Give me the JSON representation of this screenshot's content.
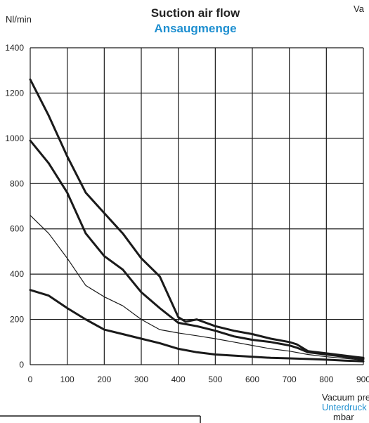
{
  "colors": {
    "ink": "#1a1a1a",
    "accent": "#1e8fd0",
    "grid": "#1a1a1a"
  },
  "chart_data": {
    "type": "line",
    "title": "Suction air flow",
    "subtitle": "Ansaugmenge",
    "ylabel": "Nl/min",
    "xlabel": "Vacuum pressure",
    "xlabel_de": "Unterdruck",
    "xunit": "mbar",
    "corner_label": "Va",
    "xlim": [
      0,
      900
    ],
    "ylim": [
      0,
      1400
    ],
    "x_ticks": [
      0,
      100,
      200,
      300,
      400,
      500,
      600,
      700,
      800,
      900
    ],
    "y_ticks": [
      0,
      200,
      400,
      600,
      800,
      1000,
      1200,
      1400
    ],
    "grid": true,
    "series": [
      {
        "weight": "bold",
        "points": [
          [
            0,
            1260
          ],
          [
            50,
            1100
          ],
          [
            100,
            920
          ],
          [
            150,
            760
          ],
          [
            200,
            670
          ],
          [
            250,
            580
          ],
          [
            300,
            470
          ],
          [
            350,
            390
          ],
          [
            400,
            210
          ],
          [
            420,
            190
          ],
          [
            450,
            200
          ],
          [
            500,
            170
          ],
          [
            550,
            150
          ],
          [
            600,
            135
          ],
          [
            650,
            115
          ],
          [
            700,
            100
          ],
          [
            720,
            90
          ],
          [
            750,
            60
          ],
          [
            800,
            50
          ],
          [
            850,
            40
          ],
          [
            900,
            30
          ]
        ]
      },
      {
        "weight": "bold",
        "points": [
          [
            0,
            990
          ],
          [
            50,
            890
          ],
          [
            100,
            760
          ],
          [
            150,
            580
          ],
          [
            200,
            480
          ],
          [
            250,
            420
          ],
          [
            300,
            320
          ],
          [
            350,
            250
          ],
          [
            400,
            185
          ],
          [
            450,
            170
          ],
          [
            500,
            150
          ],
          [
            550,
            125
          ],
          [
            600,
            110
          ],
          [
            650,
            100
          ],
          [
            700,
            85
          ],
          [
            720,
            75
          ],
          [
            750,
            55
          ],
          [
            800,
            45
          ],
          [
            850,
            35
          ],
          [
            900,
            25
          ]
        ]
      },
      {
        "weight": "thin",
        "points": [
          [
            0,
            660
          ],
          [
            50,
            580
          ],
          [
            100,
            470
          ],
          [
            150,
            350
          ],
          [
            200,
            300
          ],
          [
            250,
            260
          ],
          [
            300,
            200
          ],
          [
            350,
            155
          ],
          [
            400,
            140
          ],
          [
            450,
            128
          ],
          [
            500,
            115
          ],
          [
            550,
            100
          ],
          [
            600,
            85
          ],
          [
            650,
            70
          ],
          [
            700,
            60
          ],
          [
            750,
            45
          ],
          [
            800,
            35
          ],
          [
            850,
            28
          ],
          [
            900,
            20
          ]
        ]
      },
      {
        "weight": "bold",
        "points": [
          [
            0,
            330
          ],
          [
            50,
            305
          ],
          [
            100,
            250
          ],
          [
            150,
            200
          ],
          [
            200,
            155
          ],
          [
            250,
            135
          ],
          [
            300,
            115
          ],
          [
            350,
            95
          ],
          [
            400,
            70
          ],
          [
            450,
            55
          ],
          [
            500,
            45
          ],
          [
            550,
            40
          ],
          [
            600,
            35
          ],
          [
            650,
            30
          ],
          [
            700,
            28
          ],
          [
            750,
            25
          ],
          [
            800,
            22
          ],
          [
            850,
            18
          ],
          [
            900,
            15
          ]
        ]
      }
    ]
  }
}
